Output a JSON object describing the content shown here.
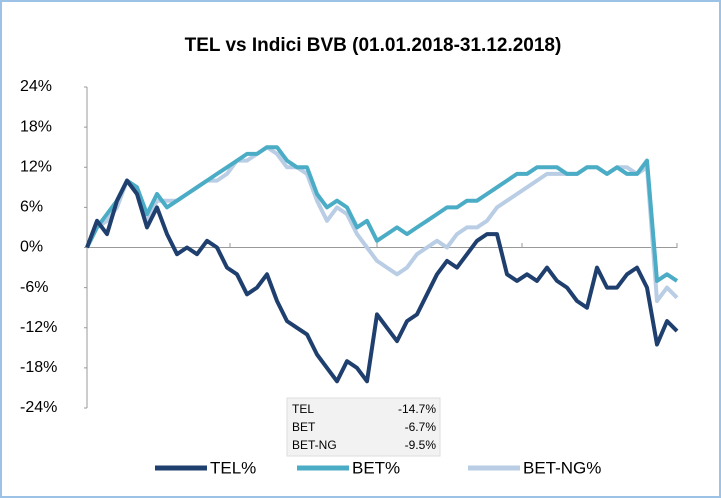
{
  "chart_data": {
    "type": "line",
    "title": "TEL vs Indici BVB (01.01.2018-31.12.2018)",
    "ylim": [
      -24,
      24
    ],
    "yticks": [
      {
        "value": -24,
        "label": "-24%"
      },
      {
        "value": -18,
        "label": "-18%"
      },
      {
        "value": -12,
        "label": "-12%"
      },
      {
        "value": -6,
        "label": "-6%"
      },
      {
        "value": 0,
        "label": "0%"
      },
      {
        "value": 6,
        "label": "6%"
      },
      {
        "value": 12,
        "label": "12%"
      },
      {
        "value": 18,
        "label": "18%"
      },
      {
        "value": 24,
        "label": "24%"
      }
    ],
    "series": [
      {
        "name": "TEL%",
        "color": "#1f3f6e",
        "values": [
          0,
          4,
          2,
          7,
          10,
          8,
          3,
          6,
          2,
          -1,
          0,
          -1,
          1,
          0,
          -3,
          -4,
          -7,
          -6,
          -4,
          -8,
          -11,
          -12,
          -13,
          -16,
          -18,
          -20,
          -17,
          -18,
          -20,
          -10,
          -12,
          -14,
          -11,
          -10,
          -7,
          -4,
          -2,
          -3,
          -1,
          1,
          2,
          2,
          -4,
          -5,
          -4,
          -5,
          -3,
          -5,
          -6,
          -8,
          -9,
          -3,
          -6,
          -6,
          -4,
          -3,
          -6,
          -14.5,
          -11,
          -12.5
        ]
      },
      {
        "name": "BET%",
        "color": "#4bacc6",
        "values": [
          0,
          3,
          5,
          7,
          10,
          9,
          5,
          8,
          6,
          7,
          8,
          9,
          10,
          11,
          12,
          13,
          14,
          14,
          15,
          15,
          13,
          12,
          12,
          8,
          6,
          7,
          6,
          3,
          4,
          1,
          2,
          3,
          2,
          3,
          4,
          5,
          6,
          6,
          7,
          7,
          8,
          9,
          10,
          11,
          11,
          12,
          12,
          12,
          11,
          11,
          12,
          12,
          11,
          12,
          11,
          11,
          13,
          -5,
          -4,
          -5
        ]
      },
      {
        "name": "BET-NG%",
        "color": "#b9cde5",
        "values": [
          0,
          3,
          4,
          6,
          10,
          9,
          4,
          7,
          7,
          7,
          8,
          9,
          10,
          10,
          11,
          13,
          13,
          14,
          15,
          14,
          12,
          12,
          11,
          7,
          4,
          6,
          5,
          2,
          0,
          -2,
          -3,
          -4,
          -3,
          -1,
          0,
          1,
          0,
          2,
          3,
          3,
          4,
          6,
          7,
          8,
          9,
          10,
          11,
          11,
          11,
          11,
          12,
          12,
          11,
          12,
          12,
          11,
          12,
          -8,
          -6,
          -7.5
        ]
      }
    ],
    "summary_table": [
      [
        "TEL",
        "-14.7%"
      ],
      [
        "BET",
        "-6.7%"
      ],
      [
        "BET-NG",
        "-9.5%"
      ]
    ]
  }
}
